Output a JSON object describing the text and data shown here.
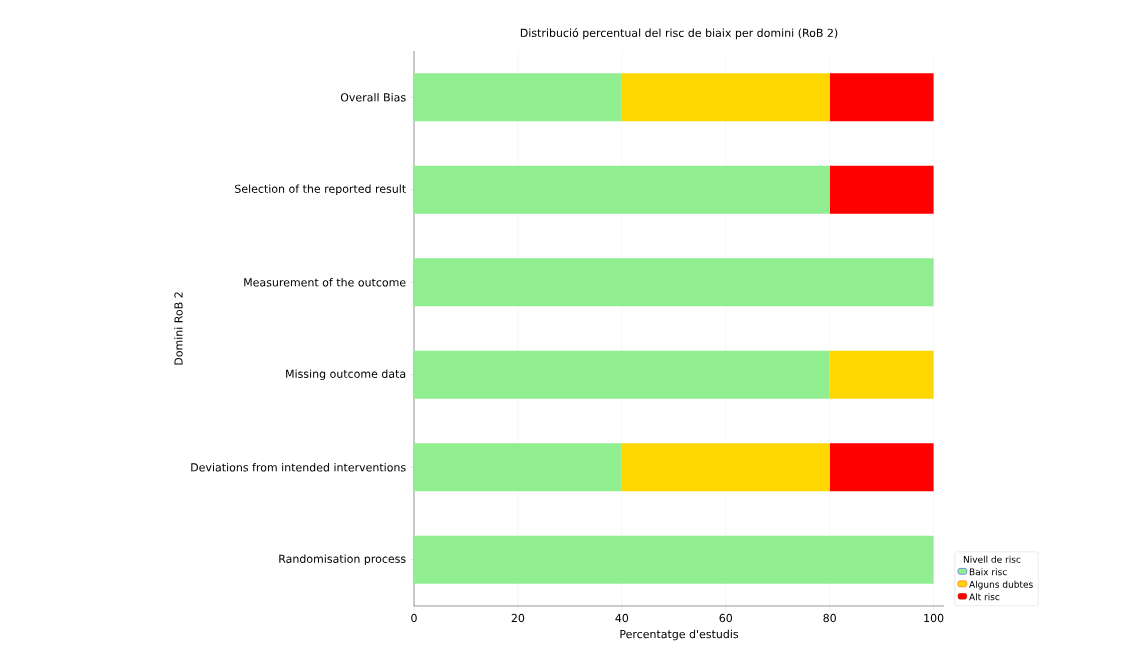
{
  "chart_data": {
    "type": "bar",
    "orientation": "horizontal",
    "stacked": true,
    "title": "Distribució percentual del risc de biaix per domini (RoB 2)",
    "xlabel": "Percentatge d'estudis",
    "ylabel": "Domini RoB 2",
    "legend_title": "Nivell de risc",
    "categories": [
      "Overall Bias",
      "Selection of the reported result",
      "Measurement of the outcome",
      "Missing outcome data",
      "Deviations from intended interventions",
      "Randomisation process"
    ],
    "series": [
      {
        "name": "Baix risc",
        "color": "#90ee90",
        "values": [
          40,
          80,
          100,
          80,
          40,
          100
        ]
      },
      {
        "name": "Alguns dubtes",
        "color": "#ffd700",
        "values": [
          40,
          0,
          0,
          20,
          40,
          0
        ]
      },
      {
        "name": "Alt risc",
        "color": "#ff0000",
        "values": [
          20,
          20,
          0,
          0,
          20,
          0
        ]
      }
    ],
    "xlim": [
      0,
      102
    ],
    "xticks": [
      0,
      20,
      40,
      60,
      80,
      100
    ],
    "grid": "x",
    "legend": "bottom right"
  }
}
